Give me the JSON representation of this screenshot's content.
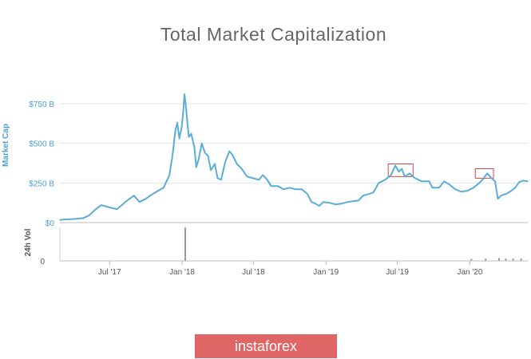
{
  "title": "Total Market Capitalization",
  "brand": {
    "label": "instaforex"
  },
  "chart_data": {
    "type": "line",
    "title": "Total Market Capitalization",
    "ylabel": "Market Cap",
    "ylabel_secondary": "24h Vol",
    "ylim": [
      0,
      900
    ],
    "y_ticks": [
      {
        "value": 0,
        "label": "$0"
      },
      {
        "value": 250,
        "label": "$250 B"
      },
      {
        "value": 500,
        "label": "$500 B"
      },
      {
        "value": 750,
        "label": "$750 B"
      }
    ],
    "vol_ticks": [
      {
        "value": 0,
        "label": "0"
      }
    ],
    "x_range": [
      "2017-02-25",
      "2020-05-27"
    ],
    "x_ticks": [
      {
        "date": "2017-07-01",
        "label": "Jul '17"
      },
      {
        "date": "2018-01-01",
        "label": "Jan '18"
      },
      {
        "date": "2018-07-01",
        "label": "Jul '18"
      },
      {
        "date": "2019-01-01",
        "label": "Jan '19"
      },
      {
        "date": "2019-07-01",
        "label": "Jul '19"
      },
      {
        "date": "2020-01-01",
        "label": "Jan '20"
      }
    ],
    "series": [
      {
        "color": "#5aaed6",
        "points": [
          [
            "2017-02-25",
            17
          ],
          [
            "2017-03-15",
            20
          ],
          [
            "2017-04-05",
            23
          ],
          [
            "2017-04-25",
            28
          ],
          [
            "2017-05-10",
            45
          ],
          [
            "2017-05-25",
            80
          ],
          [
            "2017-06-10",
            110
          ],
          [
            "2017-06-25",
            100
          ],
          [
            "2017-07-10",
            90
          ],
          [
            "2017-07-20",
            85
          ],
          [
            "2017-08-01",
            110
          ],
          [
            "2017-08-15",
            140
          ],
          [
            "2017-09-01",
            170
          ],
          [
            "2017-09-15",
            130
          ],
          [
            "2017-10-01",
            150
          ],
          [
            "2017-10-15",
            175
          ],
          [
            "2017-11-01",
            200
          ],
          [
            "2017-11-15",
            220
          ],
          [
            "2017-11-30",
            300
          ],
          [
            "2017-12-08",
            430
          ],
          [
            "2017-12-15",
            580
          ],
          [
            "2017-12-20",
            630
          ],
          [
            "2017-12-25",
            530
          ],
          [
            "2017-12-31",
            600
          ],
          [
            "2018-01-04",
            700
          ],
          [
            "2018-01-07",
            810
          ],
          [
            "2018-01-10",
            750
          ],
          [
            "2018-01-14",
            640
          ],
          [
            "2018-01-18",
            540
          ],
          [
            "2018-01-24",
            560
          ],
          [
            "2018-02-01",
            480
          ],
          [
            "2018-02-06",
            350
          ],
          [
            "2018-02-12",
            400
          ],
          [
            "2018-02-20",
            500
          ],
          [
            "2018-02-28",
            440
          ],
          [
            "2018-03-08",
            420
          ],
          [
            "2018-03-15",
            330
          ],
          [
            "2018-03-25",
            370
          ],
          [
            "2018-04-01",
            280
          ],
          [
            "2018-04-10",
            270
          ],
          [
            "2018-04-20",
            380
          ],
          [
            "2018-05-01",
            450
          ],
          [
            "2018-05-08",
            430
          ],
          [
            "2018-05-20",
            370
          ],
          [
            "2018-06-01",
            340
          ],
          [
            "2018-06-15",
            290
          ],
          [
            "2018-06-30",
            280
          ],
          [
            "2018-07-15",
            270
          ],
          [
            "2018-07-25",
            300
          ],
          [
            "2018-08-05",
            270
          ],
          [
            "2018-08-15",
            230
          ],
          [
            "2018-09-01",
            230
          ],
          [
            "2018-09-15",
            210
          ],
          [
            "2018-10-01",
            220
          ],
          [
            "2018-10-15",
            210
          ],
          [
            "2018-11-01",
            210
          ],
          [
            "2018-11-15",
            180
          ],
          [
            "2018-11-25",
            130
          ],
          [
            "2018-12-05",
            120
          ],
          [
            "2018-12-15",
            105
          ],
          [
            "2018-12-25",
            130
          ],
          [
            "2019-01-10",
            125
          ],
          [
            "2019-01-25",
            115
          ],
          [
            "2019-02-10",
            120
          ],
          [
            "2019-02-25",
            130
          ],
          [
            "2019-03-10",
            135
          ],
          [
            "2019-03-25",
            140
          ],
          [
            "2019-04-05",
            170
          ],
          [
            "2019-04-20",
            180
          ],
          [
            "2019-05-01",
            190
          ],
          [
            "2019-05-15",
            250
          ],
          [
            "2019-05-31",
            270
          ],
          [
            "2019-06-15",
            300
          ],
          [
            "2019-06-26",
            360
          ],
          [
            "2019-07-05",
            320
          ],
          [
            "2019-07-12",
            340
          ],
          [
            "2019-07-20",
            290
          ],
          [
            "2019-08-01",
            310
          ],
          [
            "2019-08-15",
            280
          ],
          [
            "2019-09-01",
            260
          ],
          [
            "2019-09-20",
            260
          ],
          [
            "2019-09-28",
            220
          ],
          [
            "2019-10-15",
            220
          ],
          [
            "2019-10-28",
            260
          ],
          [
            "2019-11-10",
            240
          ],
          [
            "2019-11-25",
            210
          ],
          [
            "2019-12-10",
            195
          ],
          [
            "2019-12-25",
            200
          ],
          [
            "2020-01-10",
            220
          ],
          [
            "2020-01-25",
            250
          ],
          [
            "2020-02-05",
            280
          ],
          [
            "2020-02-14",
            310
          ],
          [
            "2020-02-25",
            280
          ],
          [
            "2020-03-05",
            260
          ],
          [
            "2020-03-12",
            150
          ],
          [
            "2020-03-20",
            170
          ],
          [
            "2020-04-01",
            180
          ],
          [
            "2020-04-15",
            200
          ],
          [
            "2020-04-25",
            220
          ],
          [
            "2020-05-05",
            255
          ],
          [
            "2020-05-15",
            265
          ],
          [
            "2020-05-27",
            260
          ]
        ]
      }
    ],
    "volume": {
      "color": "#999999",
      "bars": [
        [
          "2018-01-09",
          1
        ],
        [
          "2020-01-05",
          0.06
        ],
        [
          "2020-02-10",
          0.07
        ],
        [
          "2020-03-15",
          0.08
        ],
        [
          "2020-04-01",
          0.07
        ],
        [
          "2020-04-20",
          0.07
        ],
        [
          "2020-05-10",
          0.07
        ]
      ]
    },
    "highlights": [
      {
        "from": "2019-06-08",
        "to": "2019-08-10",
        "y_from": 290,
        "y_to": 370,
        "color": "#dd4444"
      },
      {
        "from": "2020-01-15",
        "to": "2020-03-01",
        "y_from": 280,
        "y_to": 340,
        "color": "#dd4444"
      }
    ],
    "legend": "none",
    "grid": true
  }
}
